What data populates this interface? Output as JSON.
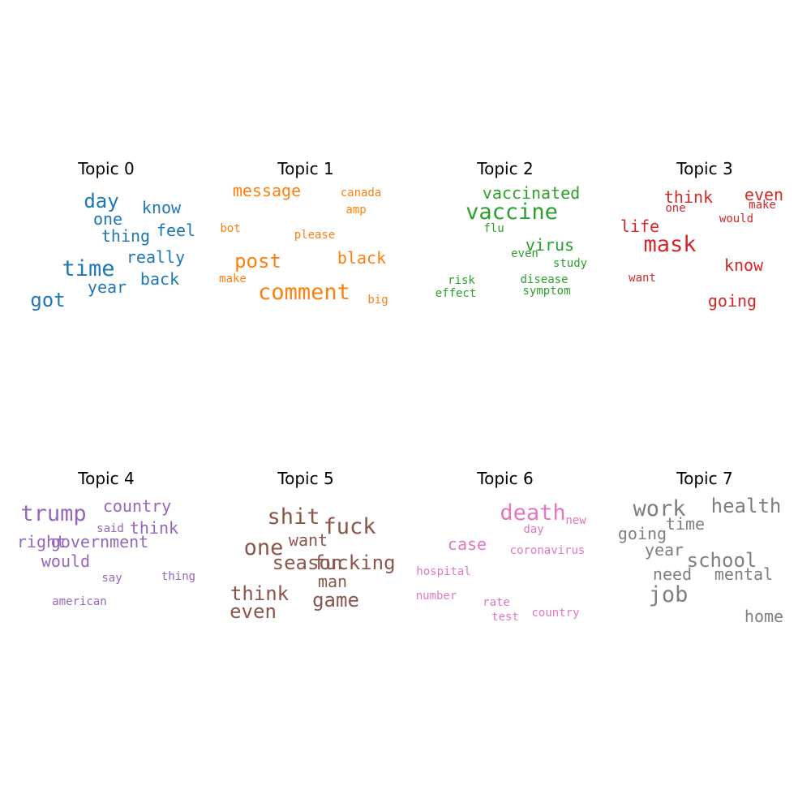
{
  "chart_data": {
    "type": "wordcloud",
    "panels": [
      {
        "title": "Topic 0",
        "color": "#1f77b4",
        "words": [
          {
            "text": "day",
            "weight": 3
          },
          {
            "text": "know",
            "weight": 2
          },
          {
            "text": "one",
            "weight": 2
          },
          {
            "text": "feel",
            "weight": 2
          },
          {
            "text": "thing",
            "weight": 2
          },
          {
            "text": "really",
            "weight": 2
          },
          {
            "text": "time",
            "weight": 4
          },
          {
            "text": "back",
            "weight": 2
          },
          {
            "text": "year",
            "weight": 2
          },
          {
            "text": "got",
            "weight": 3
          }
        ]
      },
      {
        "title": "Topic 1",
        "color": "#ff7f0e",
        "words": [
          {
            "text": "message",
            "weight": 2
          },
          {
            "text": "canada",
            "weight": 1
          },
          {
            "text": "amp",
            "weight": 1
          },
          {
            "text": "bot",
            "weight": 1
          },
          {
            "text": "please",
            "weight": 1
          },
          {
            "text": "post",
            "weight": 3
          },
          {
            "text": "black",
            "weight": 2
          },
          {
            "text": "make",
            "weight": 1
          },
          {
            "text": "comment",
            "weight": 4
          },
          {
            "text": "big",
            "weight": 1
          }
        ]
      },
      {
        "title": "Topic 2",
        "color": "#2ca02c",
        "words": [
          {
            "text": "vaccinated",
            "weight": 2
          },
          {
            "text": "vaccine",
            "weight": 4
          },
          {
            "text": "flu",
            "weight": 1
          },
          {
            "text": "virus",
            "weight": 2
          },
          {
            "text": "even",
            "weight": 1
          },
          {
            "text": "study",
            "weight": 1
          },
          {
            "text": "risk",
            "weight": 1
          },
          {
            "text": "disease",
            "weight": 1
          },
          {
            "text": "effect",
            "weight": 1
          },
          {
            "text": "symptom",
            "weight": 1
          }
        ]
      },
      {
        "title": "Topic 3",
        "color": "#d62728",
        "words": [
          {
            "text": "think",
            "weight": 2
          },
          {
            "text": "even",
            "weight": 2
          },
          {
            "text": "one",
            "weight": 1
          },
          {
            "text": "make",
            "weight": 1
          },
          {
            "text": "would",
            "weight": 1
          },
          {
            "text": "life",
            "weight": 2
          },
          {
            "text": "mask",
            "weight": 4
          },
          {
            "text": "know",
            "weight": 2
          },
          {
            "text": "want",
            "weight": 1
          },
          {
            "text": "going",
            "weight": 2
          }
        ]
      },
      {
        "title": "Topic 4",
        "color": "#9467bd",
        "words": [
          {
            "text": "trump",
            "weight": 4
          },
          {
            "text": "country",
            "weight": 2
          },
          {
            "text": "said",
            "weight": 1
          },
          {
            "text": "think",
            "weight": 2
          },
          {
            "text": "right",
            "weight": 2
          },
          {
            "text": "government",
            "weight": 2
          },
          {
            "text": "would",
            "weight": 2
          },
          {
            "text": "thing",
            "weight": 1
          },
          {
            "text": "say",
            "weight": 1
          },
          {
            "text": "american",
            "weight": 1
          }
        ]
      },
      {
        "title": "Topic 5",
        "color": "#8c564b",
        "words": [
          {
            "text": "shit",
            "weight": 4
          },
          {
            "text": "fuck",
            "weight": 4
          },
          {
            "text": "one",
            "weight": 4
          },
          {
            "text": "want",
            "weight": 2
          },
          {
            "text": "season",
            "weight": 3
          },
          {
            "text": "fucking",
            "weight": 3
          },
          {
            "text": "man",
            "weight": 2
          },
          {
            "text": "think",
            "weight": 3
          },
          {
            "text": "game",
            "weight": 3
          },
          {
            "text": "even",
            "weight": 3
          }
        ]
      },
      {
        "title": "Topic 6",
        "color": "#e377c2",
        "words": [
          {
            "text": "death",
            "weight": 4
          },
          {
            "text": "new",
            "weight": 1
          },
          {
            "text": "day",
            "weight": 1
          },
          {
            "text": "case",
            "weight": 2
          },
          {
            "text": "coronavirus",
            "weight": 1
          },
          {
            "text": "hospital",
            "weight": 1
          },
          {
            "text": "number",
            "weight": 1
          },
          {
            "text": "rate",
            "weight": 1
          },
          {
            "text": "test",
            "weight": 1
          },
          {
            "text": "country",
            "weight": 1
          }
        ]
      },
      {
        "title": "Topic 7",
        "color": "#7f7f7f",
        "words": [
          {
            "text": "work",
            "weight": 4
          },
          {
            "text": "health",
            "weight": 3
          },
          {
            "text": "time",
            "weight": 2
          },
          {
            "text": "going",
            "weight": 2
          },
          {
            "text": "year",
            "weight": 2
          },
          {
            "text": "school",
            "weight": 3
          },
          {
            "text": "need",
            "weight": 2
          },
          {
            "text": "mental",
            "weight": 2
          },
          {
            "text": "job",
            "weight": 4
          },
          {
            "text": "home",
            "weight": 2
          }
        ]
      }
    ]
  }
}
